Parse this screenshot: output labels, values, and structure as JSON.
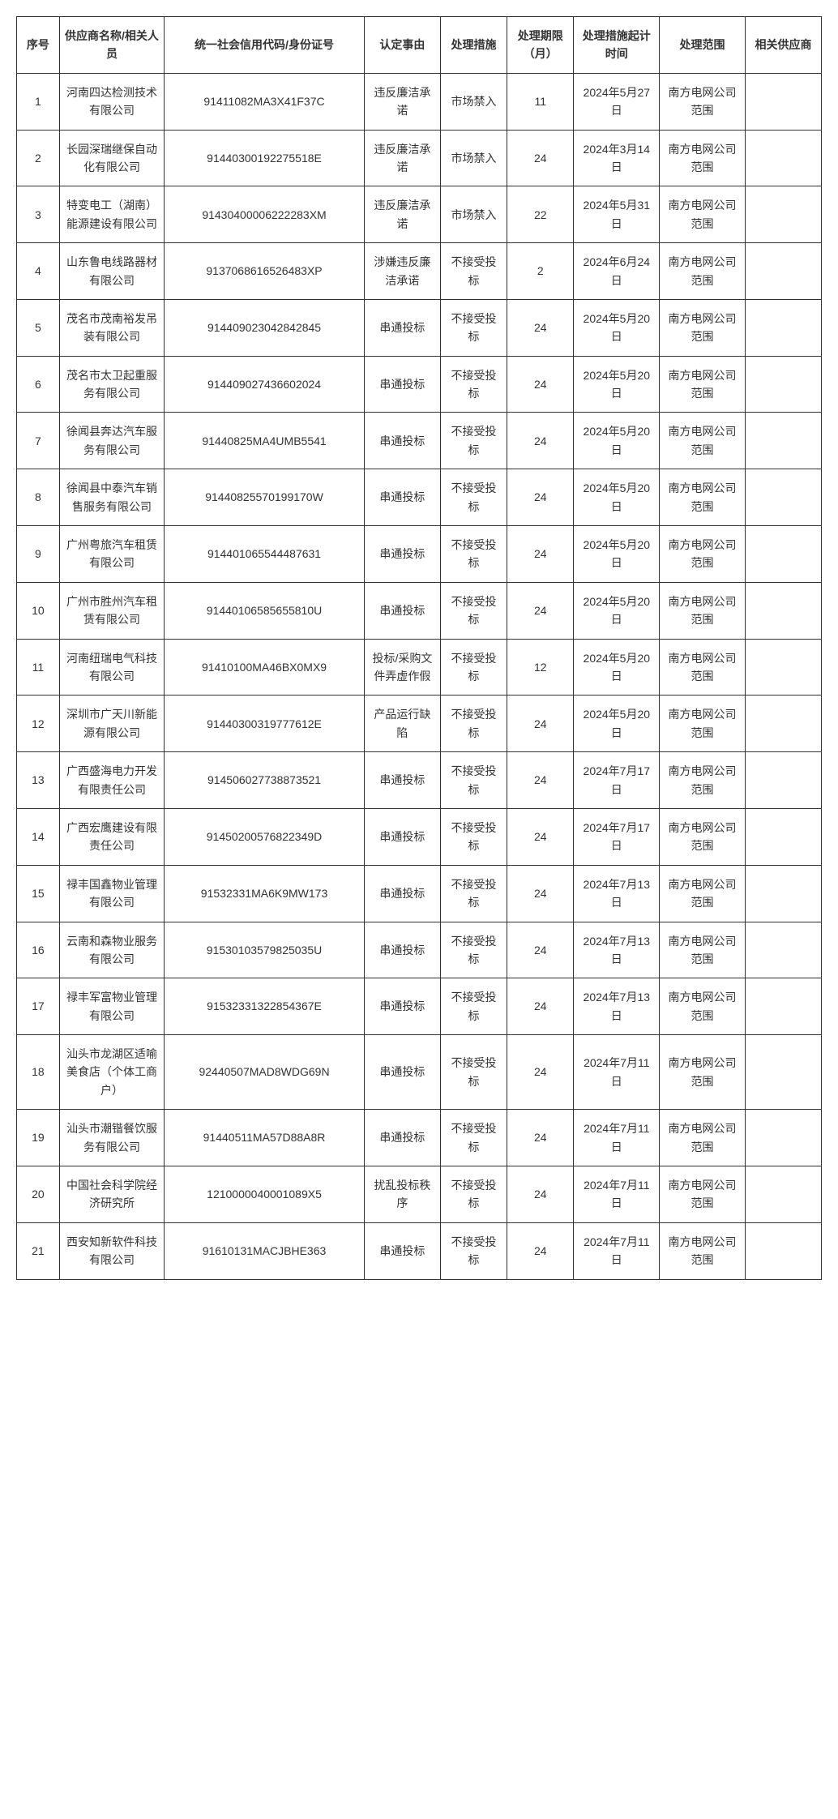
{
  "table": {
    "headers": {
      "seq": "序号",
      "name": "供应商名称/相关人员",
      "code": "统一社会信用代码/身份证号",
      "reason": "认定事由",
      "measure": "处理措施",
      "period": "处理期限（月）",
      "start": "处理措施起计时间",
      "scope": "处理范围",
      "related": "相关供应商"
    },
    "rows": [
      {
        "seq": "1",
        "name": "河南四达检测技术有限公司",
        "code": "91411082MA3X41F37C",
        "reason": "违反廉洁承诺",
        "measure": "市场禁入",
        "period": "11",
        "start": "2024年5月27日",
        "scope": "南方电网公司范围",
        "related": ""
      },
      {
        "seq": "2",
        "name": "长园深瑞继保自动化有限公司",
        "code": "91440300192275518E",
        "reason": "违反廉洁承诺",
        "measure": "市场禁入",
        "period": "24",
        "start": "2024年3月14日",
        "scope": "南方电网公司范围",
        "related": ""
      },
      {
        "seq": "3",
        "name": "特变电工（湖南）能源建设有限公司",
        "code": "91430400006222283XM",
        "reason": "违反廉洁承诺",
        "measure": "市场禁入",
        "period": "22",
        "start": "2024年5月31日",
        "scope": "南方电网公司范围",
        "related": ""
      },
      {
        "seq": "4",
        "name": "山东鲁电线路器材有限公司",
        "code": "9137068616526483XP",
        "reason": "涉嫌违反廉洁承诺",
        "measure": "不接受投标",
        "period": "2",
        "start": "2024年6月24日",
        "scope": "南方电网公司范围",
        "related": ""
      },
      {
        "seq": "5",
        "name": "茂名市茂南裕发吊装有限公司",
        "code": "91440902304284​2845",
        "reason": "串通投标",
        "measure": "不接受投标",
        "period": "24",
        "start": "2024年5月20日",
        "scope": "南方电网公司范围",
        "related": ""
      },
      {
        "seq": "6",
        "name": "茂名市太卫起重服务有限公司",
        "code": "914409027436602024",
        "reason": "串通投标",
        "measure": "不接受投标",
        "period": "24",
        "start": "2024年5月20日",
        "scope": "南方电网公司范围",
        "related": ""
      },
      {
        "seq": "7",
        "name": "徐闻县奔达汽车服务有限公司",
        "code": "91440825MA4UMB5541",
        "reason": "串通投标",
        "measure": "不接受投标",
        "period": "24",
        "start": "2024年5月20日",
        "scope": "南方电网公司范围",
        "related": ""
      },
      {
        "seq": "8",
        "name": "徐闻县中泰汽车销售服务有限公司",
        "code": "9144082557019​9170W",
        "reason": "串通投标",
        "measure": "不接受投标",
        "period": "24",
        "start": "2024年5月20日",
        "scope": "南方电网公司范围",
        "related": ""
      },
      {
        "seq": "9",
        "name": "广州粤旅汽车租赁有限公司",
        "code": "914401065544487631",
        "reason": "串通投标",
        "measure": "不接受投标",
        "period": "24",
        "start": "2024年5月20日",
        "scope": "南方电网公司范围",
        "related": ""
      },
      {
        "seq": "10",
        "name": "广州市胜州汽车租赁有限公司",
        "code": "91440106585655810U",
        "reason": "串通投标",
        "measure": "不接受投标",
        "period": "24",
        "start": "2024年5月20日",
        "scope": "南方电网公司范围",
        "related": ""
      },
      {
        "seq": "11",
        "name": "河南纽瑞电气科技有限公司",
        "code": "91410100MA46BX0MX9",
        "reason": "投标/采购文件弄虚作假",
        "measure": "不接受投标",
        "period": "12",
        "start": "2024年5月20日",
        "scope": "南方电网公司范围",
        "related": ""
      },
      {
        "seq": "12",
        "name": "深圳市广天川新能源有限公司",
        "code": "91440300319777612E",
        "reason": "产品运行缺陷",
        "measure": "不接受投标",
        "period": "24",
        "start": "2024年5月20日",
        "scope": "南方电网公司范围",
        "related": ""
      },
      {
        "seq": "13",
        "name": "广西盛海电力开发有限责任公司",
        "code": "914506027738873521",
        "reason": "串通投标",
        "measure": "不接受投标",
        "period": "24",
        "start": "2024年7月17日",
        "scope": "南方电网公司范围",
        "related": ""
      },
      {
        "seq": "14",
        "name": "广西宏鹰建设有限责任公司",
        "code": "91450200576822349D",
        "reason": "串通投标",
        "measure": "不接受投标",
        "period": "24",
        "start": "2024年7月17日",
        "scope": "南方电网公司范围",
        "related": ""
      },
      {
        "seq": "15",
        "name": "禄丰国鑫物业管理有限公司",
        "code": "91532331MA6K9MW173",
        "reason": "串通投标",
        "measure": "不接受投标",
        "period": "24",
        "start": "2024年7月13日",
        "scope": "南方电网公司范围",
        "related": ""
      },
      {
        "seq": "16",
        "name": "云南和森物业服务有限公司",
        "code": "91530103579825035U",
        "reason": "串通投标",
        "measure": "不接受投标",
        "period": "24",
        "start": "2024年7月13日",
        "scope": "南方电网公司范围",
        "related": ""
      },
      {
        "seq": "17",
        "name": "禄丰军富物业管理有限公司",
        "code": "91532331322854367E",
        "reason": "串通投标",
        "measure": "不接受投标",
        "period": "24",
        "start": "2024年7月13日",
        "scope": "南方电网公司范围",
        "related": ""
      },
      {
        "seq": "18",
        "name": "汕头市龙湖区适喻美食店（个体工商户）",
        "code": "92440507MAD8WDG69N",
        "reason": "串通投标",
        "measure": "不接受投标",
        "period": "24",
        "start": "2024年7月11日",
        "scope": "南方电网公司范围",
        "related": ""
      },
      {
        "seq": "19",
        "name": "汕头市潮锴餐饮服务有限公司",
        "code": "91440511MA57D88A8R",
        "reason": "串通投标",
        "measure": "不接受投标",
        "period": "24",
        "start": "2024年7月11日",
        "scope": "南方电网公司范围",
        "related": ""
      },
      {
        "seq": "20",
        "name": "中国社会科学院经济研究所",
        "code": "1210000040001089X5",
        "reason": "扰乱投标秩序",
        "measure": "不接受投标",
        "period": "24",
        "start": "2024年7月11日",
        "scope": "南方电网公司范围",
        "related": ""
      },
      {
        "seq": "21",
        "name": "西安知新软件科技有限公司",
        "code": "91610131MACJBHE363",
        "reason": "串通投标",
        "measure": "不接受投标",
        "period": "24",
        "start": "2024年7月11日",
        "scope": "南方电网公司范围",
        "related": ""
      }
    ],
    "styling": {
      "border_color": "#333333",
      "background_color": "#ffffff",
      "text_color": "#333333",
      "font_size": 14,
      "header_font_weight": "bold",
      "cell_padding": "12px 6px",
      "column_widths": {
        "seq": "4.5%",
        "name": "11%",
        "code": "21%",
        "reason": "8%",
        "measure": "7%",
        "period": "7%",
        "start": "9%",
        "scope": "9%",
        "related": "8%"
      }
    }
  }
}
